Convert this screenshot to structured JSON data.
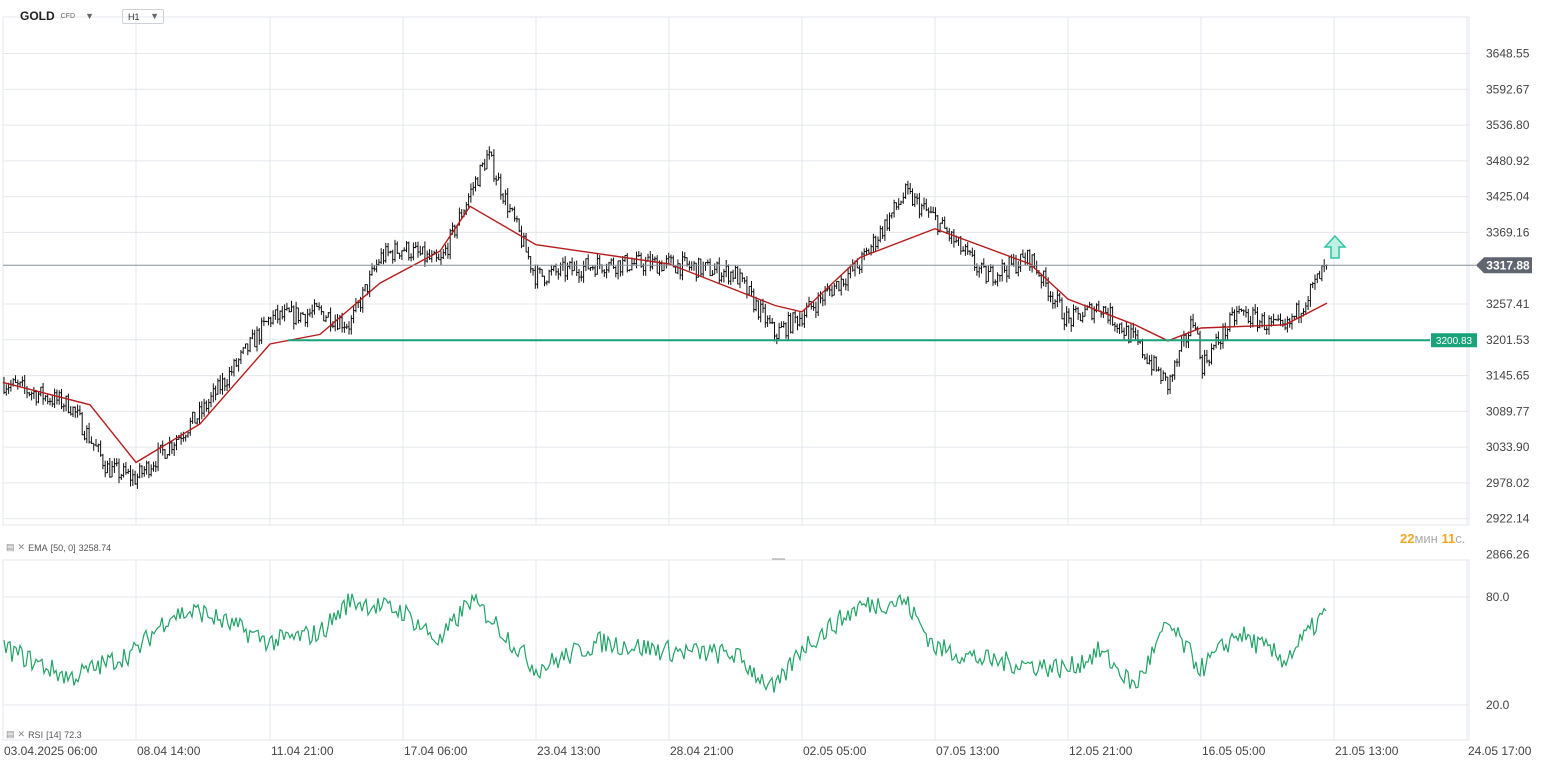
{
  "header": {
    "symbol": "GOLD",
    "symbol_type": "CFD",
    "timeframe": "H1"
  },
  "indicators": {
    "ema_label": "EMA",
    "ema_params": "[50, 0]",
    "ema_value": "3258.74",
    "rsi_label": "RSI",
    "rsi_params": "[14]",
    "rsi_value": "72.3"
  },
  "price_badge": "3317.88",
  "support_badge": "3200.83",
  "timer": {
    "minutes": "22",
    "min_unit": "мин",
    "seconds": "11",
    "sec_unit": "с."
  },
  "colors": {
    "candles": "#111111",
    "ema": "#b71c1c",
    "rsi": "#21a366",
    "support_line": "#1aa37a",
    "price_badge_bg": "#5f6670",
    "support_badge_bg": "#1aa37a",
    "arrow": "#2ec4a0",
    "grid": "#e3e7ec"
  },
  "icons": {
    "indicator_icon": "bars-icon",
    "remove_icon": "close-icon",
    "arrow": "up-arrow-icon"
  },
  "chart_data": {
    "type": "candlestick",
    "price_axis_ticks": [
      "3648.55",
      "3592.67",
      "3536.80",
      "3480.92",
      "3425.04",
      "3369.16",
      "3257.41",
      "3201.53",
      "3145.65",
      "3089.77",
      "3033.90",
      "2978.02",
      "2922.14",
      "2866.26"
    ],
    "price_axis_range": [
      2866.26,
      3648.55
    ],
    "time_axis_ticks": [
      "03.04.2025 06:00",
      "08.04 14:00",
      "11.04 21:00",
      "17.04 06:00",
      "23.04 13:00",
      "28.04 21:00",
      "02.05 05:00",
      "07.05 13:00",
      "12.05 21:00",
      "16.05 05:00",
      "21.05 13:00",
      "24.05 17:00"
    ],
    "rsi_axis_ticks": [
      "80.0",
      "20.0"
    ],
    "rsi_axis_range": [
      20,
      80
    ],
    "price_path": [
      [
        "03.04.2025 06:00",
        3135
      ],
      [
        "05.04",
        3100
      ],
      [
        "07.04",
        3000
      ],
      [
        "08.04 14:00",
        2985
      ],
      [
        "10.04",
        3085
      ],
      [
        "11.04 21:00",
        3235
      ],
      [
        "14.04",
        3245
      ],
      [
        "15.04",
        3225
      ],
      [
        "16.04",
        3330
      ],
      [
        "17.04 06:00",
        3345
      ],
      [
        "18.04",
        3320
      ],
      [
        "21.04",
        3430
      ],
      [
        "22.04",
        3490
      ],
      [
        "23.04 13:00",
        3300
      ],
      [
        "25.04",
        3320
      ],
      [
        "28.04 21:00",
        3320
      ],
      [
        "30.04",
        3305
      ],
      [
        "01.05",
        3210
      ],
      [
        "02.05 05:00",
        3240
      ],
      [
        "05.05",
        3320
      ],
      [
        "06.05",
        3430
      ],
      [
        "07.05 13:00",
        3390
      ],
      [
        "09.05",
        3300
      ],
      [
        "12.05",
        3330
      ],
      [
        "12.05 21:00",
        3230
      ],
      [
        "13.05",
        3255
      ],
      [
        "14.05",
        3200
      ],
      [
        "15.05",
        3130
      ],
      [
        "15.05 12:00",
        3240
      ],
      [
        "16.05 05:00",
        3160
      ],
      [
        "16.05 18:00",
        3245
      ],
      [
        "19.05",
        3215
      ],
      [
        "20.05",
        3317.88
      ]
    ],
    "ema_path": [
      [
        "03.04.2025 06:00",
        3135
      ],
      [
        "06.04",
        3100
      ],
      [
        "08.04 14:00",
        3010
      ],
      [
        "10.04",
        3070
      ],
      [
        "11.04 21:00",
        3195
      ],
      [
        "14.04",
        3210
      ],
      [
        "16.04",
        3290
      ],
      [
        "18.04",
        3340
      ],
      [
        "21.04",
        3410
      ],
      [
        "23.04 13:00",
        3350
      ],
      [
        "28.04 21:00",
        3320
      ],
      [
        "01.05",
        3255
      ],
      [
        "02.05 05:00",
        3245
      ],
      [
        "05.05",
        3330
      ],
      [
        "07.05 13:00",
        3375
      ],
      [
        "12.05",
        3320
      ],
      [
        "12.05 21:00",
        3265
      ],
      [
        "14.05",
        3225
      ],
      [
        "15.05",
        3200
      ],
      [
        "16.05 05:00",
        3220
      ],
      [
        "19.05",
        3225
      ],
      [
        "20.05",
        3258.74
      ]
    ],
    "rsi_path": [
      [
        "03.04.2025 06:00",
        52
      ],
      [
        "05.04",
        35
      ],
      [
        "08.04 14:00",
        50
      ],
      [
        "09.04",
        70
      ],
      [
        "10.04",
        72
      ],
      [
        "11.04 21:00",
        55
      ],
      [
        "14.04",
        60
      ],
      [
        "15.04",
        78
      ],
      [
        "17.04 06:00",
        72
      ],
      [
        "18.04",
        55
      ],
      [
        "21.04",
        78
      ],
      [
        "22.04",
        70
      ],
      [
        "23.04 13:00",
        40
      ],
      [
        "25.04",
        55
      ],
      [
        "28.04 21:00",
        50
      ],
      [
        "30.04",
        48
      ],
      [
        "01.05",
        28
      ],
      [
        "02.05 05:00",
        52
      ],
      [
        "05.05",
        75
      ],
      [
        "06.05",
        78
      ],
      [
        "07.05 13:00",
        52
      ],
      [
        "09.05",
        45
      ],
      [
        "12.05 21:00",
        40
      ],
      [
        "13.05",
        50
      ],
      [
        "14.05",
        30
      ],
      [
        "15.05",
        65
      ],
      [
        "16.05 05:00",
        40
      ],
      [
        "16.05 18:00",
        60
      ],
      [
        "19.05",
        45
      ],
      [
        "20.05",
        72.3
      ]
    ],
    "support_level": 3200.83,
    "current_price": 3317.88,
    "grid": true
  }
}
